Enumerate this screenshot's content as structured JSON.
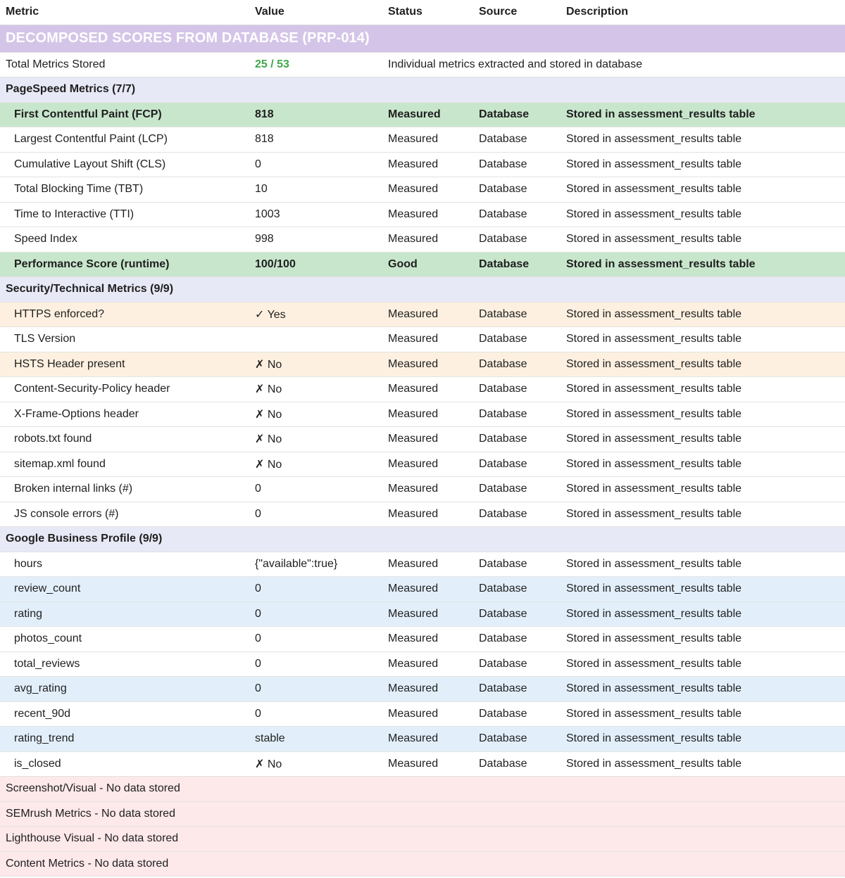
{
  "headers": {
    "metric": "Metric",
    "value": "Value",
    "status": "Status",
    "source": "Source",
    "description": "Description"
  },
  "title": "DECOMPOSED SCORES FROM DATABASE (PRP-014)",
  "summary": {
    "label": "Total Metrics Stored",
    "value": "25 / 53",
    "description": "Individual metrics extracted and stored in database"
  },
  "colors": {
    "title_bg": "#d4c5e8",
    "section_bg": "#e8e9f6",
    "highlight_green": "#c8e6cc",
    "highlight_orange": "#fdf0e0",
    "highlight_blue": "#e2effb",
    "missing_red": "#fde8ea",
    "value_green": "#3ea84a"
  },
  "sections": [
    {
      "title": "PageSpeed Metrics (7/7)",
      "rows": [
        {
          "metric": "First Contentful Paint (FCP)",
          "value": "818",
          "status": "Measured",
          "source": "Database",
          "description": "Stored in assessment_results table",
          "style": "green"
        },
        {
          "metric": "Largest Contentful Paint (LCP)",
          "value": "818",
          "status": "Measured",
          "source": "Database",
          "description": "Stored in assessment_results table",
          "style": "plain"
        },
        {
          "metric": "Cumulative Layout Shift (CLS)",
          "value": "0",
          "status": "Measured",
          "source": "Database",
          "description": "Stored in assessment_results table",
          "style": "plain"
        },
        {
          "metric": "Total Blocking Time (TBT)",
          "value": "10",
          "status": "Measured",
          "source": "Database",
          "description": "Stored in assessment_results table",
          "style": "plain"
        },
        {
          "metric": "Time to Interactive (TTI)",
          "value": "1003",
          "status": "Measured",
          "source": "Database",
          "description": "Stored in assessment_results table",
          "style": "plain"
        },
        {
          "metric": "Speed Index",
          "value": "998",
          "status": "Measured",
          "source": "Database",
          "description": "Stored in assessment_results table",
          "style": "plain"
        },
        {
          "metric": "Performance Score (runtime)",
          "value": "100/100",
          "status": "Good",
          "source": "Database",
          "description": "Stored in assessment_results table",
          "style": "green"
        }
      ]
    },
    {
      "title": "Security/Technical Metrics (9/9)",
      "rows": [
        {
          "metric": "HTTPS enforced?",
          "value": "✓ Yes",
          "status": "Measured",
          "source": "Database",
          "description": "Stored in assessment_results table",
          "style": "orange"
        },
        {
          "metric": "TLS Version",
          "value": "",
          "status": "Measured",
          "source": "Database",
          "description": "Stored in assessment_results table",
          "style": "plain"
        },
        {
          "metric": "HSTS Header present",
          "value": "✗ No",
          "status": "Measured",
          "source": "Database",
          "description": "Stored in assessment_results table",
          "style": "orange"
        },
        {
          "metric": "Content-Security-Policy header",
          "value": "✗ No",
          "status": "Measured",
          "source": "Database",
          "description": "Stored in assessment_results table",
          "style": "plain"
        },
        {
          "metric": "X-Frame-Options header",
          "value": "✗ No",
          "status": "Measured",
          "source": "Database",
          "description": "Stored in assessment_results table",
          "style": "plain"
        },
        {
          "metric": "robots.txt found",
          "value": "✗ No",
          "status": "Measured",
          "source": "Database",
          "description": "Stored in assessment_results table",
          "style": "plain"
        },
        {
          "metric": "sitemap.xml found",
          "value": "✗ No",
          "status": "Measured",
          "source": "Database",
          "description": "Stored in assessment_results table",
          "style": "plain"
        },
        {
          "metric": "Broken internal links (#)",
          "value": "0",
          "status": "Measured",
          "source": "Database",
          "description": "Stored in assessment_results table",
          "style": "plain"
        },
        {
          "metric": "JS console errors (#)",
          "value": "0",
          "status": "Measured",
          "source": "Database",
          "description": "Stored in assessment_results table",
          "style": "plain"
        }
      ]
    },
    {
      "title": "Google Business Profile (9/9)",
      "rows": [
        {
          "metric": "hours",
          "value": "{\"available\":true}",
          "status": "Measured",
          "source": "Database",
          "description": "Stored in assessment_results table",
          "style": "plain"
        },
        {
          "metric": "review_count",
          "value": "0",
          "status": "Measured",
          "source": "Database",
          "description": "Stored in assessment_results table",
          "style": "blue"
        },
        {
          "metric": "rating",
          "value": "0",
          "status": "Measured",
          "source": "Database",
          "description": "Stored in assessment_results table",
          "style": "blue"
        },
        {
          "metric": "photos_count",
          "value": "0",
          "status": "Measured",
          "source": "Database",
          "description": "Stored in assessment_results table",
          "style": "plain"
        },
        {
          "metric": "total_reviews",
          "value": "0",
          "status": "Measured",
          "source": "Database",
          "description": "Stored in assessment_results table",
          "style": "plain"
        },
        {
          "metric": "avg_rating",
          "value": "0",
          "status": "Measured",
          "source": "Database",
          "description": "Stored in assessment_results table",
          "style": "blue"
        },
        {
          "metric": "recent_90d",
          "value": "0",
          "status": "Measured",
          "source": "Database",
          "description": "Stored in assessment_results table",
          "style": "plain"
        },
        {
          "metric": "rating_trend",
          "value": "stable",
          "status": "Measured",
          "source": "Database",
          "description": "Stored in assessment_results table",
          "style": "blue"
        },
        {
          "metric": "is_closed",
          "value": "✗ No",
          "status": "Measured",
          "source": "Database",
          "description": "Stored in assessment_results table",
          "style": "plain"
        }
      ]
    }
  ],
  "missing": [
    "Screenshot/Visual - No data stored",
    "SEMrush Metrics - No data stored",
    "Lighthouse Visual - No data stored",
    "Content Metrics - No data stored"
  ]
}
